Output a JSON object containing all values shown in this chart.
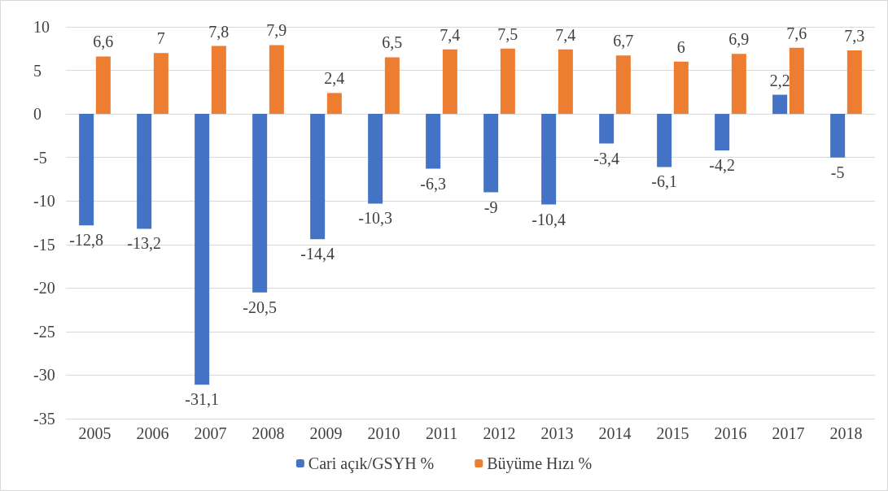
{
  "chart_data": {
    "type": "bar",
    "categories": [
      "2005",
      "2006",
      "2007",
      "2008",
      "2009",
      "2010",
      "2011",
      "2012",
      "2013",
      "2014",
      "2015",
      "2016",
      "2017",
      "2018"
    ],
    "series": [
      {
        "name": "Cari açık/GSYH %",
        "color": "#4472c4",
        "values": [
          -12.8,
          -13.2,
          -31.1,
          -20.5,
          -14.4,
          -10.3,
          -6.3,
          -9,
          -10.4,
          -3.4,
          -6.1,
          -4.2,
          2.2,
          -5
        ],
        "value_labels": [
          "-12,8",
          "-13,2",
          "-31,1",
          "-20,5",
          "-14,4",
          "-10,3",
          "-6,3",
          "-9",
          "-10,4",
          "-3,4",
          "-6,1",
          "-4,2",
          "2,2",
          "-5"
        ]
      },
      {
        "name": "Büyüme Hızı %",
        "color": "#ed7d31",
        "values": [
          6.6,
          7,
          7.8,
          7.9,
          2.4,
          6.5,
          7.4,
          7.5,
          7.4,
          6.7,
          6,
          6.9,
          7.6,
          7.3
        ],
        "value_labels": [
          "6,6",
          "7",
          "7,8",
          "7,9",
          "2,4",
          "6,5",
          "7,4",
          "7,5",
          "7,4",
          "6,7",
          "6",
          "6,9",
          "7,6",
          "7,3"
        ]
      }
    ],
    "ylim": [
      -35,
      10
    ],
    "yticks": [
      -35,
      -30,
      -25,
      -20,
      -15,
      -10,
      -5,
      0,
      5,
      10
    ],
    "grid": "y",
    "legend": "bottom"
  }
}
